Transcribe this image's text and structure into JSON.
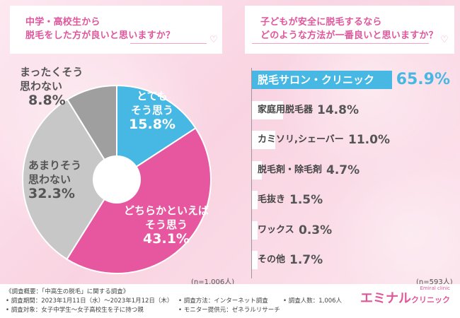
{
  "left_question": {
    "line1": "中学・高校生から",
    "line2": "脱毛をした方が良いと思いますか？"
  },
  "right_question": {
    "line1": "子どもが安全に脱毛するなら",
    "line2": "どのような方法が一番良いと思いますか？"
  },
  "chart_data": [
    {
      "type": "pie",
      "donut": true,
      "start": "top, clockwise",
      "slices": [
        {
          "label": "とても そう思う",
          "label_lines": [
            "とても",
            "そう思う"
          ],
          "value": 15.8,
          "color": "#47b8e4"
        },
        {
          "label": "どちらかといえば そう思う",
          "label_lines": [
            "どちらかといえば",
            "そう思う"
          ],
          "value": 43.1,
          "color": "#e7579f"
        },
        {
          "label": "あまりそう 思わない",
          "label_lines": [
            "あまりそう",
            "思わない"
          ],
          "value": 32.3,
          "color": "#c7c7c7"
        },
        {
          "label": "まったくそう 思わない",
          "label_lines": [
            "まったくそう",
            "思わない"
          ],
          "value": 8.8,
          "color": "#9f9f9f"
        }
      ],
      "note": "(n=1,006人)"
    },
    {
      "type": "bar",
      "orientation": "horizontal",
      "xlim": [
        0,
        100
      ],
      "categories": [
        "脱毛サロン・クリニック",
        "家庭用脱毛器",
        "カミソリ,シェーバー",
        "脱毛剤・除毛剤",
        "毛抜き",
        "ワックス",
        "その他"
      ],
      "values": [
        65.9,
        14.8,
        11.0,
        4.7,
        1.5,
        0.3,
        1.7
      ],
      "value_labels": [
        "65.9%",
        "14.8%",
        "11.0%",
        "4.7%",
        "1.5%",
        "0.3%",
        "1.7%"
      ],
      "highlight_color": "#47b8e4",
      "bar_color": "#ffffff",
      "note": "(n=593人)"
    }
  ],
  "footer": {
    "title": "《調査概要：「中高生の脱毛」に関する調査》",
    "period": "• 調査期間：2023年1月11日（水）～2023年1月12日（木）",
    "method": "• 調査方法：インターネット調査",
    "count": "• 調査人数：1,006人",
    "target": "• 調査対象：女子中学生～女子高校生を子に持つ親",
    "provider": "• モニター提供元：ゼネラルリサーチ"
  },
  "logo": {
    "main": "エミナル",
    "sub": "クリニック",
    "tag": "Emiral clinic"
  }
}
